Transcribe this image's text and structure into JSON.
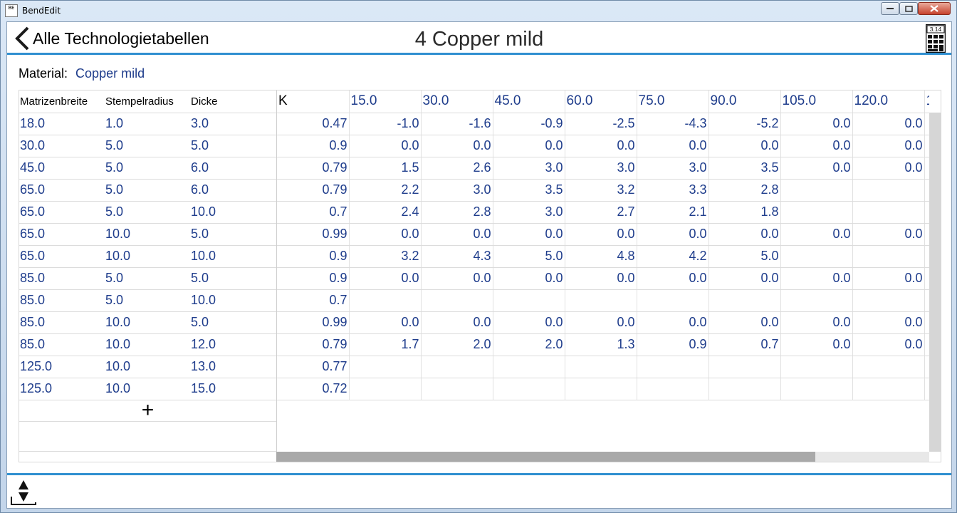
{
  "window": {
    "title": "BendEdit",
    "app_icon_text": "BE"
  },
  "header": {
    "back_label": "Alle Technologietabellen",
    "title": "4 Copper mild",
    "calc_icon_text": "3.14"
  },
  "material": {
    "label": "Material:",
    "value": "Copper mild"
  },
  "table": {
    "left_headers": [
      "Matrizenbreite",
      "Stempelradius",
      "Dicke"
    ],
    "k_header": "K",
    "angle_headers": [
      "15.0",
      "30.0",
      "45.0",
      "60.0",
      "75.0",
      "90.0",
      "105.0",
      "120.0",
      "1"
    ],
    "rows": [
      {
        "m": "18.0",
        "s": "1.0",
        "d": "3.0",
        "k": "0.47",
        "v": [
          "-1.0",
          "-1.6",
          "-0.9",
          "-2.5",
          "-4.3",
          "-5.2",
          "0.0",
          "0.0"
        ]
      },
      {
        "m": "30.0",
        "s": "5.0",
        "d": "5.0",
        "k": "0.9",
        "v": [
          "0.0",
          "0.0",
          "0.0",
          "0.0",
          "0.0",
          "0.0",
          "0.0",
          "0.0"
        ]
      },
      {
        "m": "45.0",
        "s": "5.0",
        "d": "6.0",
        "k": "0.79",
        "v": [
          "1.5",
          "2.6",
          "3.0",
          "3.0",
          "3.0",
          "3.5",
          "0.0",
          "0.0"
        ]
      },
      {
        "m": "65.0",
        "s": "5.0",
        "d": "6.0",
        "k": "0.79",
        "v": [
          "2.2",
          "3.0",
          "3.5",
          "3.2",
          "3.3",
          "2.8",
          "",
          ""
        ]
      },
      {
        "m": "65.0",
        "s": "5.0",
        "d": "10.0",
        "k": "0.7",
        "v": [
          "2.4",
          "2.8",
          "3.0",
          "2.7",
          "2.1",
          "1.8",
          "",
          ""
        ]
      },
      {
        "m": "65.0",
        "s": "10.0",
        "d": "5.0",
        "k": "0.99",
        "v": [
          "0.0",
          "0.0",
          "0.0",
          "0.0",
          "0.0",
          "0.0",
          "0.0",
          "0.0"
        ]
      },
      {
        "m": "65.0",
        "s": "10.0",
        "d": "10.0",
        "k": "0.9",
        "v": [
          "3.2",
          "4.3",
          "5.0",
          "4.8",
          "4.2",
          "5.0",
          "",
          ""
        ]
      },
      {
        "m": "85.0",
        "s": "5.0",
        "d": "5.0",
        "k": "0.9",
        "v": [
          "0.0",
          "0.0",
          "0.0",
          "0.0",
          "0.0",
          "0.0",
          "0.0",
          "0.0"
        ]
      },
      {
        "m": "85.0",
        "s": "5.0",
        "d": "10.0",
        "k": "0.7",
        "v": [
          "",
          "",
          "",
          "",
          "",
          "",
          "",
          ""
        ]
      },
      {
        "m": "85.0",
        "s": "10.0",
        "d": "5.0",
        "k": "0.99",
        "v": [
          "0.0",
          "0.0",
          "0.0",
          "0.0",
          "0.0",
          "0.0",
          "0.0",
          "0.0"
        ]
      },
      {
        "m": "85.0",
        "s": "10.0",
        "d": "12.0",
        "k": "0.79",
        "v": [
          "1.7",
          "2.0",
          "2.0",
          "1.3",
          "0.9",
          "0.7",
          "0.0",
          "0.0"
        ]
      },
      {
        "m": "125.0",
        "s": "10.0",
        "d": "13.0",
        "k": "0.77",
        "v": [
          "",
          "",
          "",
          "",
          "",
          "",
          "",
          ""
        ]
      },
      {
        "m": "125.0",
        "s": "10.0",
        "d": "15.0",
        "k": "0.72",
        "v": [
          "",
          "",
          "",
          "",
          "",
          "",
          "",
          ""
        ]
      }
    ],
    "add_row_symbol": "+"
  },
  "colors": {
    "accent": "#2f8fd0",
    "value_text": "#1f3d8c"
  },
  "icons": {
    "back": "chevron-left-icon",
    "calculator": "calculator-icon",
    "footer": "up-down-arrows-icon"
  }
}
